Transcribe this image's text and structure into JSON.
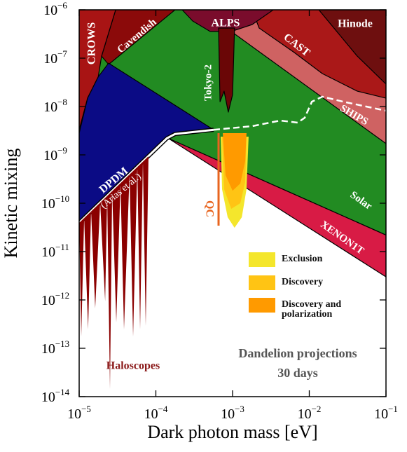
{
  "chart_data": {
    "type": "region",
    "x_label": "Dark photon mass [eV]",
    "y_label": "Kinetic mixing",
    "xscale": "log",
    "yscale": "log",
    "xlim": [
      1e-05,
      0.1
    ],
    "ylim": [
      1e-14,
      1e-06
    ],
    "xticks": [
      {
        "value": 1e-05,
        "label": "10",
        "exponent": "−5"
      },
      {
        "value": 0.0001,
        "label": "10",
        "exponent": "−4"
      },
      {
        "value": 0.001,
        "label": "10",
        "exponent": "−3"
      },
      {
        "value": 0.01,
        "label": "10",
        "exponent": "−2"
      },
      {
        "value": 0.1,
        "label": "10",
        "exponent": "−1"
      }
    ],
    "yticks": [
      {
        "value": 1e-06,
        "label": "10",
        "exponent": "−6"
      },
      {
        "value": 1e-07,
        "label": "10",
        "exponent": "−7"
      },
      {
        "value": 1e-08,
        "label": "10",
        "exponent": "−8"
      },
      {
        "value": 1e-09,
        "label": "10",
        "exponent": "−9"
      },
      {
        "value": 1e-10,
        "label": "10",
        "exponent": "−10"
      },
      {
        "value": 1e-11,
        "label": "10",
        "exponent": "−11"
      },
      {
        "value": 1e-12,
        "label": "10",
        "exponent": "−12"
      },
      {
        "value": 1e-13,
        "label": "10",
        "exponent": "−13"
      },
      {
        "value": 1e-14,
        "label": "10",
        "exponent": "−14"
      }
    ],
    "regions": [
      {
        "name": "Solar",
        "color": "#228b22",
        "mass": [
          1e-05,
          0.1,
          0.1,
          0.000145,
          1e-05
        ],
        "chi": [
          1e-06,
          1e-06,
          2.2e-11,
          2.2e-09,
          2.2e-09
        ]
      },
      {
        "name": "SHIPS",
        "color": "#cf6262",
        "mass": [
          0.00096,
          0.00274,
          0.1,
          0.1
        ],
        "chi": [
          3.56e-07,
          1e-06,
          1e-06,
          1.71e-09
        ]
      },
      {
        "name": "CAST",
        "color": "#aa1818",
        "mass": [
          0.0018,
          0.1,
          0.1,
          0.0422,
          0.0148,
          0.00636,
          0.00222
        ],
        "chi": [
          1e-06,
          1e-06,
          1.49e-08,
          2.08e-08,
          4.8e-08,
          1.31e-07,
          4.2e-07
        ]
      },
      {
        "name": "Hinode",
        "color": "#6e0f0f",
        "mass": [
          0.0133,
          0.1,
          0.1,
          0.0422
        ],
        "chi": [
          1e-06,
          1e-06,
          2.91e-08,
          1.1e-07
        ]
      },
      {
        "name": "ALPS",
        "color": "#7a0c2c",
        "mass": [
          0.00022,
          0.00339,
          0.0018,
          0.00096,
          0.00051,
          0.000302
        ],
        "chi": [
          1e-06,
          1e-06,
          4.96e-07,
          3.56e-07,
          3.56e-07,
          5.86e-07
        ]
      },
      {
        "name": "Tokyo-2",
        "color": "#6a0606",
        "mass": [
          0.000656,
          0.00106,
          0.001,
          0.00088,
          0.000776,
          0.000686
        ],
        "chi": [
          4.2e-07,
          4.2e-07,
          1.76e-08,
          7.66e-09,
          2.08e-08,
          1.26e-08
        ]
      },
      {
        "name": "Cavendish",
        "color": "#8b0a0a",
        "mass": [
          2.99e-05,
          0.000178,
          2.42e-05,
          1.96e-05
        ],
        "chi": [
          1e-06,
          1e-06,
          7.41e-08,
          1.1e-07
        ]
      },
      {
        "name": "CROWS",
        "color": "#a81414",
        "mass": [
          1e-05,
          2.99e-05,
          1.96e-05,
          1.77e-05,
          1.29e-05,
          1e-05
        ],
        "chi": [
          1e-06,
          1e-06,
          1.1e-07,
          4.1e-08,
          1.5e-08,
          3.3e-09
        ]
      },
      {
        "name": "XENON1T",
        "color": "#d81b45",
        "mass": [
          0.000145,
          0.1,
          0.1
        ],
        "chi": [
          2.2e-09,
          2.2e-11,
          3e-12
        ]
      },
      {
        "name": "DPDM",
        "note": "(Arias et al.)",
        "color": "#0b0b85",
        "mass": [
          1e-05,
          1e-05,
          1.29e-05,
          1.77e-05,
          2.42e-05,
          0.000567,
          0.000178,
          0.000139
        ],
        "chi": [
          3.93e-11,
          2.8e-09,
          1.5e-08,
          4.1e-08,
          7.9e-08,
          3.3e-09,
          2.7e-09,
          2.2e-09
        ]
      },
      {
        "name": "Haloscopes",
        "color": "#8b0000",
        "mass": [
          1e-05,
          1.065e-05,
          1.16e-05,
          1.31e-05,
          1.43e-05,
          1.62e-05,
          1.88e-05,
          2.18e-05,
          2.32e-05,
          2.52e-05,
          2.69e-05,
          3.05e-05,
          3.46e-05,
          3.84e-05,
          4.54e-05,
          5.05e-05,
          5.73e-05,
          6.23e-05,
          6.78e-05,
          7.37e-05,
          8.02e-05
        ],
        "chi": [
          3.93e-11,
          1.76e-13,
          4.96e-11,
          2.46e-13,
          7.16e-11,
          6.7e-13,
          1.03e-10,
          9.35e-13,
          1.44e-10,
          1.44e-14,
          1.82e-10,
          3.44e-13,
          2.55e-10,
          2.46e-13,
          4.06e-10,
          1.76e-13,
          5.86e-10,
          2.46e-13,
          7.41e-10,
          2.91e-13,
          9.35e-10
        ]
      }
    ],
    "curves": [
      {
        "color": "#ffffff",
        "dashed": true,
        "mass": [
          0.000567,
          0.0018,
          0.00418,
          0.00706,
          0.00873,
          0.0108,
          0.0148,
          0.0277,
          0.1
        ],
        "chi": [
          3.3e-09,
          3.93e-09,
          5.13e-09,
          4.64e-09,
          5.86e-09,
          1.26e-08,
          1.6e-08,
          1.26e-08,
          8.18e-09
        ]
      },
      {
        "name": "QC",
        "color": "#e8641e",
        "dashed": false,
        "mass": [
          0.000656,
          0.000656
        ],
        "chi": [
          2.81e-09,
          3.44e-11
        ]
      }
    ],
    "projections": {
      "title": "Dandelion projections",
      "subtitle": "30 days",
      "series": [
        {
          "name": "Exclusion",
          "color": "#f4e62c",
          "mass": [
            0.0007,
            0.00073,
            0.000863,
            0.00106,
            0.00132,
            0.00152,
            0.00162
          ],
          "chi": [
            2.38e-09,
            1.95e-10,
            5.13e-11,
            3.11e-11,
            5.13e-11,
            1.95e-10,
            2.38e-09
          ]
        },
        {
          "name": "Discovery",
          "color": "#ffc414",
          "mass": [
            0.00073,
            0.000776,
            0.00096,
            0.00126,
            0.00146,
            0.00152
          ],
          "chi": [
            2.38e-09,
            1.95e-10,
            7.66e-11,
            1e-10,
            2.72e-10,
            2.38e-09
          ]
        },
        {
          "name": "Discovery and polarization",
          "color": "#ff9a00",
          "mass": [
            0.000745,
            0.00081,
            0.001,
            0.00126,
            0.00146,
            0.00152
          ],
          "chi": [
            2.81e-09,
            3.8e-10,
            1.82e-10,
            2.55e-10,
            7.41e-10,
            2.81e-09
          ]
        }
      ]
    }
  }
}
